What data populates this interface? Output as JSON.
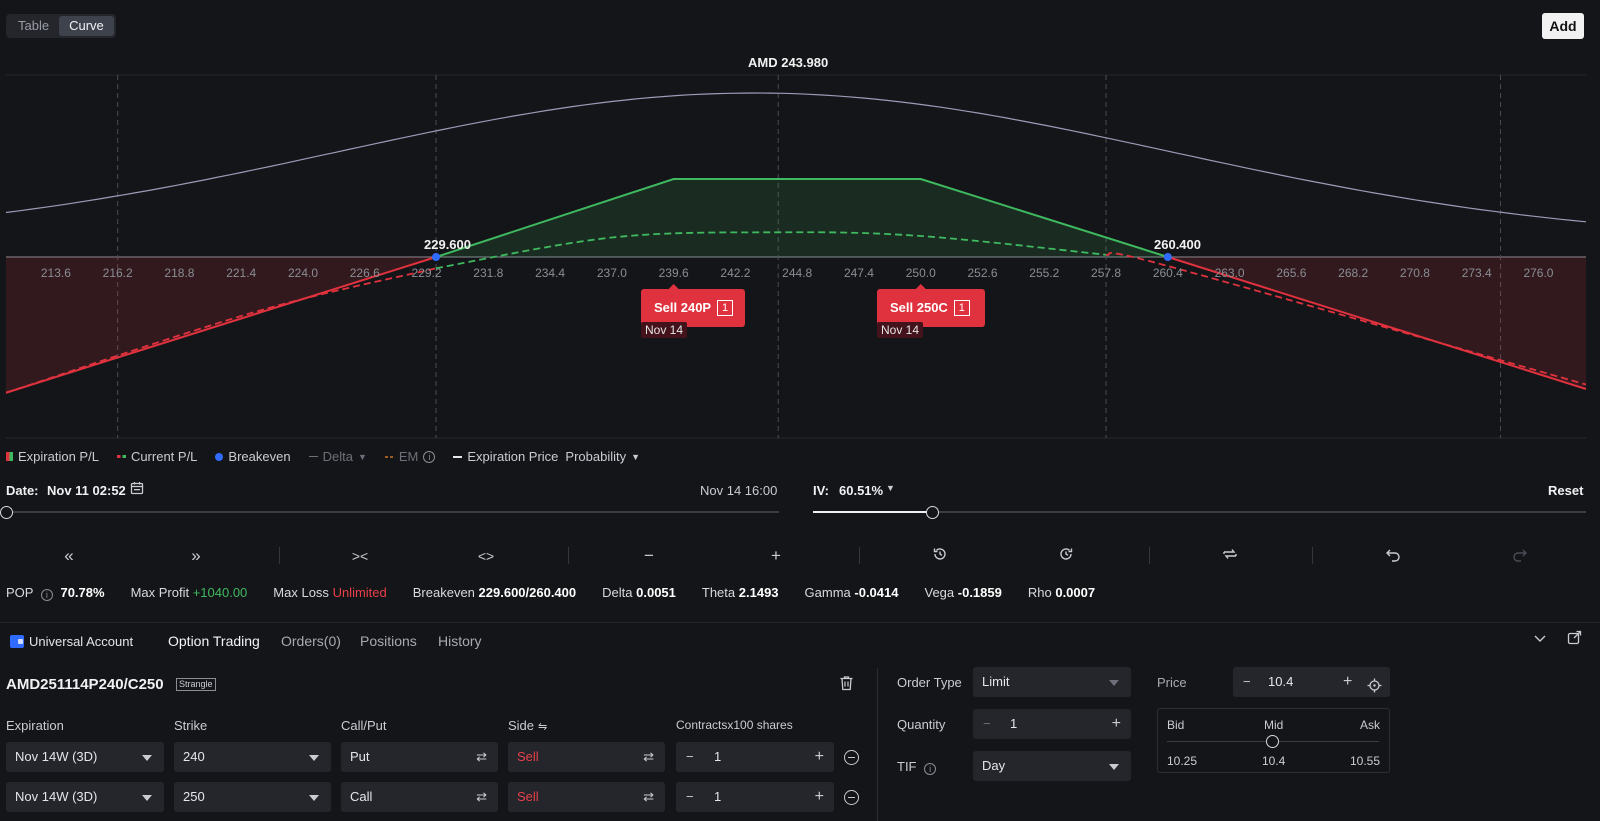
{
  "view_tabs": [
    "Table",
    "Curve"
  ],
  "add_label": "Add",
  "chart": {
    "spot_label": "AMD 243.980",
    "x_ticks": [
      "213.6",
      "216.2",
      "218.8",
      "221.4",
      "224.0",
      "226.6",
      "229.2",
      "231.8",
      "234.4",
      "237.0",
      "239.6",
      "242.2",
      "244.8",
      "247.4",
      "250.0",
      "252.6",
      "255.2",
      "257.8",
      "260.4",
      "263.0",
      "265.6",
      "268.2",
      "270.8",
      "273.4",
      "276.0"
    ],
    "breakeven_low": "229.600",
    "breakeven_high": "260.400",
    "put_pill": {
      "label": "Sell 240P",
      "qty": "1",
      "date": "Nov 14"
    },
    "call_pill": {
      "label": "Sell 250C",
      "qty": "1",
      "date": "Nov 14"
    }
  },
  "chart_data": {
    "type": "line",
    "title": "AMD 243.980",
    "xlim": [
      211.5,
      278.0
    ],
    "spot": 243.98,
    "breakevens": [
      229.6,
      260.4
    ],
    "series": [
      {
        "name": "Expiration P/L",
        "x": [
          211.5,
          229.6,
          239.6,
          250.0,
          260.4,
          278.0
        ],
        "y": [
          -18.1,
          0,
          10.4,
          10.4,
          0,
          -17.6
        ],
        "color": "#e0323e/#3fb95f"
      },
      {
        "name": "Current P/L",
        "x": [
          211.5,
          222,
          229.6,
          237.0,
          244.0,
          250.0,
          257.8,
          260.4,
          278.0
        ],
        "y": [
          -18.1,
          -7.3,
          -1.5,
          2.6,
          3.3,
          2.8,
          0.3,
          -1.2,
          -17.0
        ],
        "color": "#3fb95f"
      },
      {
        "name": "Probability",
        "x": [
          211.5,
          220,
          230,
          236,
          242,
          244.8,
          250,
          256,
          262,
          270,
          278
        ],
        "y": [
          0.08,
          0.2,
          0.6,
          0.88,
          1.0,
          1.0,
          0.92,
          0.62,
          0.38,
          0.16,
          0.07
        ],
        "color": "#9a9cb8"
      }
    ]
  },
  "legend": {
    "exp_pl": "Expiration P/L",
    "cur_pl": "Current P/L",
    "breakeven": "Breakeven",
    "delta": "Delta",
    "em": "EM",
    "exp_price": "Expiration Price",
    "probability": "Probability"
  },
  "date_row": {
    "label": "Date:",
    "value": "Nov 11 02:52",
    "end": "Nov 14 16:00",
    "date_slider": 0.0
  },
  "iv_row": {
    "label": "IV:",
    "value": "60.51%",
    "reset": "Reset",
    "iv_slider": 0.2
  },
  "stats": {
    "pop_label": "POP",
    "pop": "70.78%",
    "max_profit_label": "Max Profit",
    "max_profit": "+1040.00",
    "max_loss_label": "Max Loss",
    "max_loss": "Unlimited",
    "breakeven_label": "Breakeven",
    "breakeven": "229.600/260.400",
    "delta_label": "Delta",
    "delta": "0.0051",
    "theta_label": "Theta",
    "theta": "2.1493",
    "gamma_label": "Gamma",
    "gamma": "-0.0414",
    "vega_label": "Vega",
    "vega": "-0.1859",
    "rho_label": "Rho",
    "rho": "0.0007"
  },
  "panel_tabs": {
    "account": "Universal Account",
    "option_trading": "Option Trading",
    "orders": "Orders(0)",
    "positions": "Positions",
    "history": "History"
  },
  "strategy": {
    "symbol": "AMD251114P240/C250",
    "tag": "Strangle"
  },
  "columns": {
    "expiration": "Expiration",
    "strike": "Strike",
    "callput": "Call/Put",
    "side": "Side",
    "contracts": "Contractsx100 shares"
  },
  "legs": [
    {
      "expiration": "Nov 14W (3D)",
      "strike": "240",
      "type": "Put",
      "side": "Sell",
      "qty": "1"
    },
    {
      "expiration": "Nov 14W (3D)",
      "strike": "250",
      "type": "Call",
      "side": "Sell",
      "qty": "1"
    }
  ],
  "order": {
    "order_type_label": "Order Type",
    "order_type": "Limit",
    "quantity_label": "Quantity",
    "quantity": "1",
    "tif_label": "TIF",
    "tif": "Day",
    "price_label": "Price",
    "price": "10.4",
    "bid_label": "Bid",
    "mid_label": "Mid",
    "ask_label": "Ask",
    "bid": "10.25",
    "mid": "10.4",
    "ask": "10.55"
  }
}
